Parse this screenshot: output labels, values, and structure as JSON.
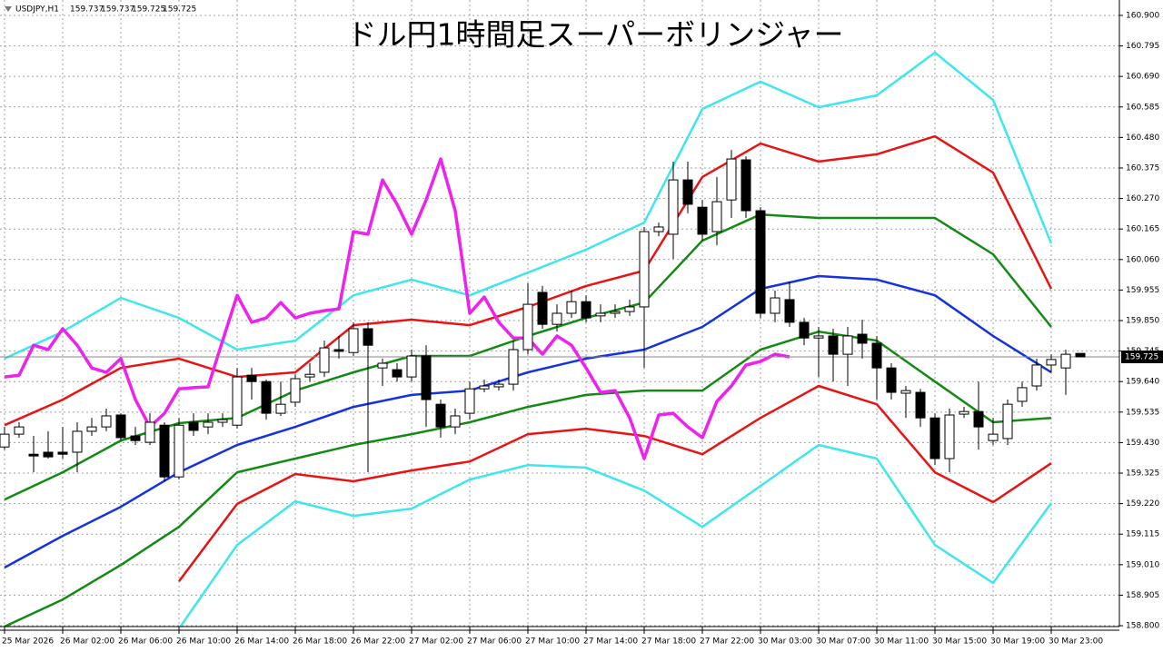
{
  "chart_data": {
    "type": "candlestick",
    "title": "ドル円1時間足スーパーボリンジャー",
    "symbol": "USDJPY,H1",
    "categories": [
      "25 Mar 2026",
      null,
      null,
      null,
      "26 Mar 02:00",
      null,
      null,
      null,
      "26 Mar 06:00",
      null,
      null,
      null,
      "26 Mar 10:00",
      null,
      null,
      null,
      "26 Mar 14:00",
      null,
      null,
      null,
      "26 Mar 18:00",
      null,
      null,
      null,
      "26 Mar 22:00",
      null,
      null,
      null,
      "27 Mar 02:00",
      null,
      null,
      null,
      "27 Mar 06:00",
      null,
      null,
      null,
      "27 Mar 10:00",
      null,
      null,
      null,
      "27 Mar 14:00",
      null,
      null,
      null,
      "27 Mar 18:00",
      null,
      null,
      null,
      "27 Mar 22:00",
      null,
      null,
      null,
      "30 Mar 03:00",
      null,
      null,
      null,
      "30 Mar 07:00",
      null,
      null,
      null,
      "30 Mar 11:00",
      null,
      null,
      null,
      "30 Mar 15:00",
      null,
      null,
      null,
      "30 Mar 19:00",
      null,
      null,
      null,
      "30 Mar 23:00",
      null,
      null
    ],
    "open": [
      159.415,
      159.459,
      159.39,
      159.397,
      159.397,
      159.397,
      159.469,
      159.484,
      159.525,
      159.453,
      159.431,
      159.49,
      159.312,
      159.5,
      159.484,
      159.5,
      159.49,
      159.662,
      159.64,
      159.531,
      159.569,
      159.656,
      159.672,
      159.75,
      159.74,
      159.822,
      159.687,
      159.681,
      159.656,
      159.728,
      159.562,
      159.484,
      159.531,
      159.615,
      159.622,
      159.631,
      159.75,
      159.947,
      159.837,
      159.875,
      159.915,
      159.866,
      159.875,
      159.881,
      159.897,
      160.156,
      160.147,
      160.334,
      160.24,
      160.156,
      160.265,
      160.403,
      160.228,
      159.875,
      159.922,
      159.844,
      159.79,
      159.797,
      159.734,
      159.803,
      159.772,
      159.687,
      159.6,
      159.603,
      159.515,
      159.375,
      159.528,
      159.537,
      159.437,
      159.444,
      159.572,
      159.625,
      159.697,
      159.687,
      159.737
    ],
    "high": [
      159.484,
      159.5,
      159.453,
      159.469,
      159.484,
      159.5,
      159.515,
      159.547,
      159.531,
      159.484,
      159.531,
      159.5,
      159.515,
      159.531,
      159.531,
      159.531,
      159.687,
      159.687,
      159.647,
      159.64,
      159.665,
      159.703,
      159.781,
      159.797,
      159.844,
      159.844,
      159.719,
      159.703,
      159.75,
      159.765,
      159.578,
      159.547,
      159.64,
      159.647,
      159.647,
      159.781,
      159.978,
      159.969,
      159.906,
      159.953,
      159.937,
      159.906,
      159.906,
      159.922,
      160.172,
      160.187,
      160.397,
      160.397,
      160.265,
      160.344,
      160.437,
      160.415,
      160.24,
      159.953,
      159.984,
      159.859,
      159.828,
      159.822,
      159.828,
      159.853,
      159.797,
      159.703,
      159.625,
      159.615,
      159.531,
      159.547,
      159.553,
      159.64,
      159.515,
      159.578,
      159.64,
      159.719,
      159.734,
      159.75,
      159.737
    ],
    "low": [
      159.406,
      159.447,
      159.328,
      159.375,
      159.375,
      159.328,
      159.453,
      159.469,
      159.437,
      159.422,
      159.422,
      159.297,
      159.303,
      159.453,
      159.459,
      159.484,
      159.478,
      159.578,
      159.509,
      159.522,
      159.553,
      159.64,
      159.656,
      159.719,
      159.728,
      159.328,
      159.625,
      159.64,
      159.64,
      159.484,
      159.447,
      159.459,
      159.509,
      159.603,
      159.609,
      159.609,
      159.734,
      159.822,
      159.812,
      159.859,
      159.844,
      159.844,
      159.859,
      159.866,
      159.687,
      160.14,
      160.062,
      160.219,
      160.125,
      160.109,
      160.203,
      160.203,
      159.859,
      159.844,
      159.828,
      159.765,
      159.656,
      159.64,
      159.625,
      159.719,
      159.578,
      159.578,
      159.515,
      159.484,
      159.353,
      159.328,
      159.515,
      159.406,
      159.422,
      159.422,
      159.553,
      159.609,
      159.672,
      159.594,
      159.725
    ],
    "close": [
      159.459,
      159.484,
      159.384,
      159.381,
      159.39,
      159.469,
      159.484,
      159.522,
      159.447,
      159.437,
      159.5,
      159.312,
      159.49,
      159.472,
      159.5,
      159.509,
      159.656,
      159.64,
      159.531,
      159.562,
      159.65,
      159.665,
      159.756,
      159.744,
      159.822,
      159.765,
      159.703,
      159.656,
      159.728,
      159.578,
      159.484,
      159.522,
      159.615,
      159.625,
      159.631,
      159.75,
      159.906,
      159.837,
      159.875,
      159.915,
      159.859,
      159.875,
      159.881,
      159.897,
      160.156,
      160.172,
      160.334,
      160.25,
      160.147,
      160.259,
      160.406,
      160.228,
      159.875,
      159.928,
      159.844,
      159.79,
      159.797,
      159.734,
      159.797,
      159.772,
      159.687,
      159.603,
      159.609,
      159.515,
      159.375,
      159.525,
      159.537,
      159.484,
      159.459,
      159.562,
      159.619,
      159.697,
      159.716,
      159.734,
      159.725
    ],
    "up_color": "#ffffff",
    "down_color": "#000000",
    "band_x": [
      "25 Mar 2026",
      "26 Mar 02:00",
      "26 Mar 06:00",
      "26 Mar 10:00",
      "26 Mar 14:00",
      "26 Mar 18:00",
      "26 Mar 22:00",
      "27 Mar 02:00",
      "27 Mar 06:00",
      "27 Mar 10:00",
      "27 Mar 14:00",
      "27 Mar 18:00",
      "27 Mar 22:00",
      "30 Mar 03:00",
      "30 Mar 07:00",
      "30 Mar 11:00",
      "30 Mar 15:00",
      "30 Mar 19:00",
      "30 Mar 23:00"
    ],
    "bands": [
      {
        "color": "#3ee6ee",
        "values": [
          159.719,
          159.812,
          159.928,
          159.859,
          159.75,
          159.781,
          159.937,
          159.991,
          159.937,
          160.015,
          160.094,
          160.187,
          160.578,
          160.672,
          160.584,
          160.625,
          160.772,
          160.609,
          160.115
        ]
      },
      {
        "color": "#e81414",
        "values": [
          159.49,
          159.578,
          159.687,
          159.719,
          159.656,
          159.672,
          159.834,
          159.853,
          159.834,
          159.897,
          159.969,
          160.022,
          160.344,
          160.459,
          160.397,
          160.422,
          160.484,
          160.359,
          159.959
        ]
      },
      {
        "color": "#138a13",
        "values": [
          159.234,
          159.328,
          159.437,
          159.497,
          159.515,
          159.609,
          159.672,
          159.728,
          159.728,
          159.797,
          159.859,
          159.912,
          160.125,
          160.215,
          160.203,
          160.203,
          160.203,
          160.078,
          159.828
        ]
      },
      {
        "color": "#1432e0",
        "values": [
          159.0,
          159.109,
          159.209,
          159.328,
          159.422,
          159.484,
          159.553,
          159.594,
          159.609,
          159.672,
          159.719,
          159.75,
          159.828,
          159.959,
          160.003,
          159.991,
          159.937,
          159.797,
          159.672
        ]
      },
      {
        "color": "#138a13",
        "values": [
          158.797,
          158.89,
          159.009,
          159.14,
          159.328,
          159.375,
          159.422,
          159.459,
          159.5,
          159.553,
          159.594,
          159.609,
          159.609,
          159.75,
          159.812,
          159.781,
          159.64,
          159.5,
          159.515
        ]
      },
      {
        "color": "#e81414",
        "values": [
          null,
          null,
          null,
          158.953,
          159.219,
          159.322,
          159.297,
          159.334,
          159.365,
          159.459,
          159.478,
          159.453,
          159.39,
          159.515,
          159.625,
          159.562,
          159.328,
          159.225,
          159.359
        ]
      },
      {
        "color": "#3ee6ee",
        "values": [
          null,
          null,
          null,
          158.79,
          159.078,
          159.228,
          159.178,
          159.203,
          159.303,
          159.353,
          159.344,
          159.265,
          159.14,
          159.281,
          159.422,
          159.375,
          159.078,
          158.947,
          159.222
        ]
      }
    ],
    "lagging": {
      "color": "#ee22ee",
      "values": [
        159.656,
        159.662,
        159.765,
        159.75,
        159.822,
        159.765,
        159.687,
        159.672,
        159.719,
        159.578,
        159.484,
        159.531,
        159.615,
        159.619,
        159.622,
        159.781,
        159.937,
        159.844,
        159.859,
        159.912,
        159.859,
        159.875,
        159.884,
        159.89,
        160.156,
        160.147,
        160.334,
        160.25,
        160.147,
        160.265,
        160.406,
        160.228,
        159.875,
        159.931,
        159.844,
        159.79,
        159.79,
        159.734,
        159.797,
        159.765,
        159.687,
        159.603,
        159.609,
        159.515,
        159.375,
        159.525,
        159.531,
        159.484,
        159.447,
        159.572,
        159.625,
        159.697,
        159.709,
        159.734,
        159.725,
        null,
        null,
        null,
        null,
        null,
        null,
        null,
        null,
        null,
        null,
        null,
        null,
        null,
        null,
        null,
        null,
        null,
        null,
        null,
        null
      ]
    },
    "ylim": [
      158.797,
      160.953
    ],
    "yticks": [
      {
        "value": 160.9,
        "label": "160.900"
      },
      160.795,
      {
        "value": 160.69,
        "label": "160.690"
      },
      160.585,
      {
        "value": 160.48,
        "label": "160.480"
      },
      160.375,
      {
        "value": 160.27,
        "label": "160.270"
      },
      160.165,
      {
        "value": 160.06,
        "label": "160.060"
      },
      159.955,
      {
        "value": 159.85,
        "label": "159.850"
      },
      159.745,
      {
        "value": 159.64,
        "label": "159.640"
      },
      159.535,
      {
        "value": 159.43,
        "label": "159.430"
      },
      159.325,
      {
        "value": 159.22,
        "label": "159.220"
      },
      159.115,
      {
        "value": 159.01,
        "label": "159.010"
      },
      158.905,
      {
        "value": 158.8,
        "label": "158.800"
      }
    ],
    "grid": true
  }
}
